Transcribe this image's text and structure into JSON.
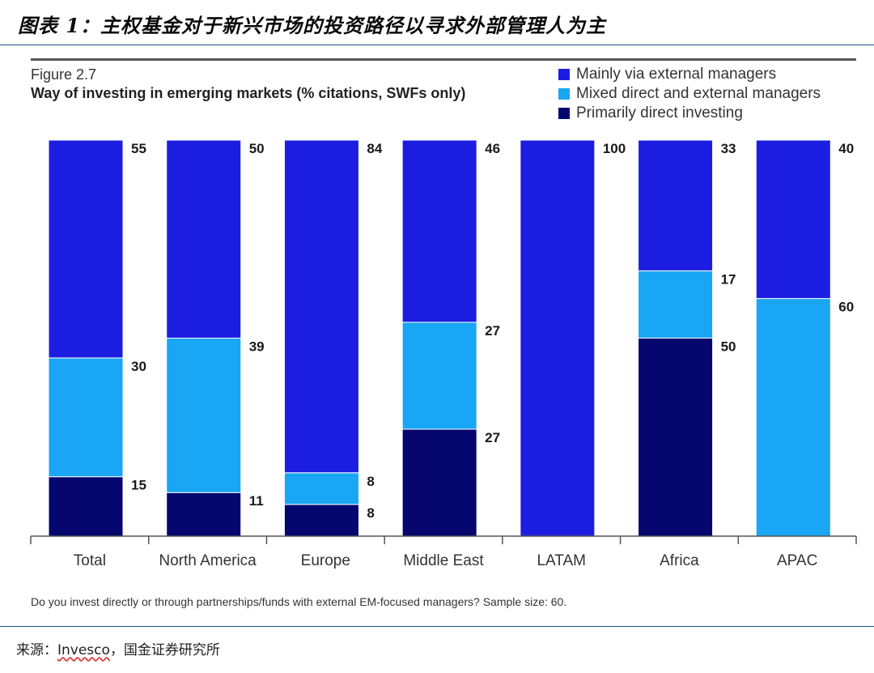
{
  "caption": "图表 1：主权基金对于新兴市场的投资路径以寻求外部管理人为主",
  "figure_label": "Figure 2.7",
  "figure_title": "Way of investing in emerging markets (% citations, SWFs only)",
  "footnote": "Do you invest directly or through partnerships/funds with external EM-focused managers? Sample size: 60.",
  "source": {
    "prefix": "来源：",
    "org": "Invesco",
    "sep": "，",
    "rest": "国金证券研究所"
  },
  "colors": {
    "mainly_external": "#1b1ee0",
    "mixed": "#19a6f5",
    "direct": "#05066e"
  },
  "chart_data": {
    "type": "bar",
    "stacked": true,
    "categories": [
      "Total",
      "North America",
      "Europe",
      "Middle East",
      "LATAM",
      "Africa",
      "APAC"
    ],
    "series": [
      {
        "name": "Primarily direct investing",
        "key": "direct",
        "values": [
          15,
          11,
          8,
          27,
          0,
          50,
          0
        ]
      },
      {
        "name": "Mixed direct and external managers",
        "key": "mixed",
        "values": [
          30,
          39,
          8,
          27,
          0,
          17,
          60
        ]
      },
      {
        "name": "Mainly via external managers",
        "key": "mainly_external",
        "values": [
          55,
          50,
          84,
          46,
          100,
          33,
          40
        ]
      }
    ],
    "legend_order": [
      "Mainly via external managers",
      "Mixed direct and external managers",
      "Primarily direct investing"
    ],
    "legend_position": "top-right",
    "ylim": [
      0,
      100
    ],
    "y_axis_visible": false,
    "grid": false,
    "xlabel": "",
    "ylabel": ""
  }
}
